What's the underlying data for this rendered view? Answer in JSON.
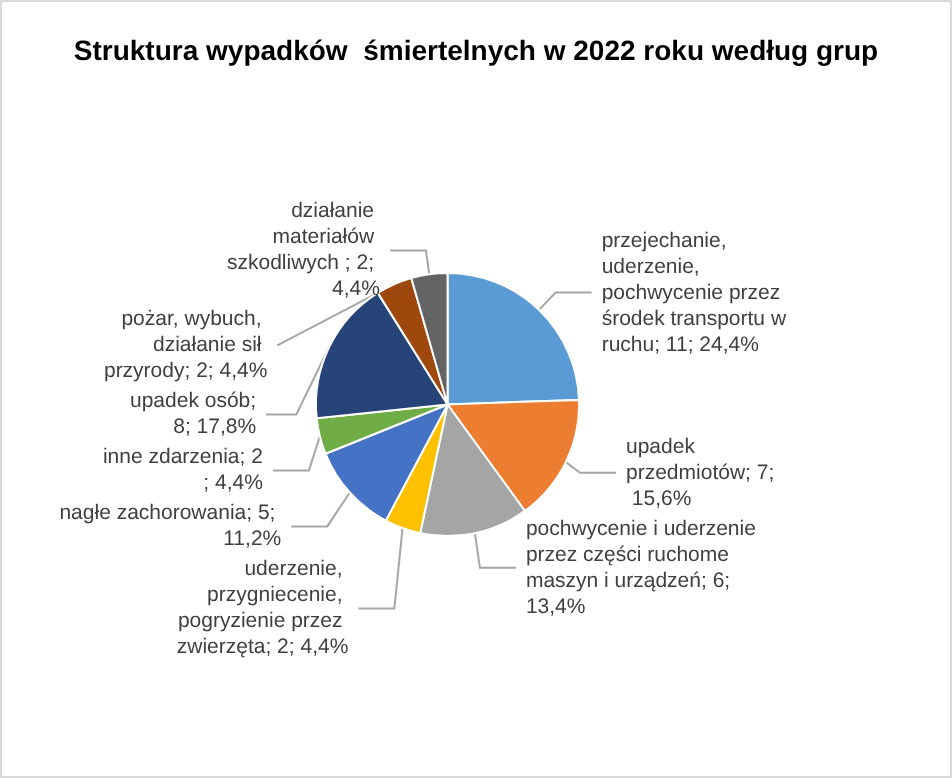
{
  "chart_data": {
    "type": "pie",
    "title": "Struktura wypadków  śmiertelnych w 2022 roku według grup",
    "categories": [
      "przejechanie, uderzenie, pochwycenie przez środek transportu w ruchu",
      "upadek przedmiotów",
      "pochwycenie i uderzenie przez części ruchome maszyn i urządzeń",
      "uderzenie, przygniecenie, pogryzienie przez zwierzęta",
      "nagłe zachorowania",
      "inne zdarzenia",
      "upadek osób",
      "pożar, wybuch, działanie sił przyrody",
      "działanie materiałów szkodliwych "
    ],
    "values": [
      11,
      7,
      6,
      2,
      5,
      2,
      8,
      2,
      2
    ],
    "value_labels": [
      "; 11; 24,4%",
      "; 7; 15,6%",
      "; 6; 13,4%",
      "; 2; 4,4%",
      "; 5; 11,2%",
      "; 2; 4,4%",
      "; 8; 17,8%",
      "; 2; 4,4%",
      "; 2; 4,4%"
    ],
    "colors": [
      "#5b9bd5",
      "#ed7d31",
      "#a5a5a5",
      "#ffc000",
      "#4472c4",
      "#70ad47",
      "#264478",
      "#9e480e",
      "#636363"
    ],
    "legend": false
  }
}
